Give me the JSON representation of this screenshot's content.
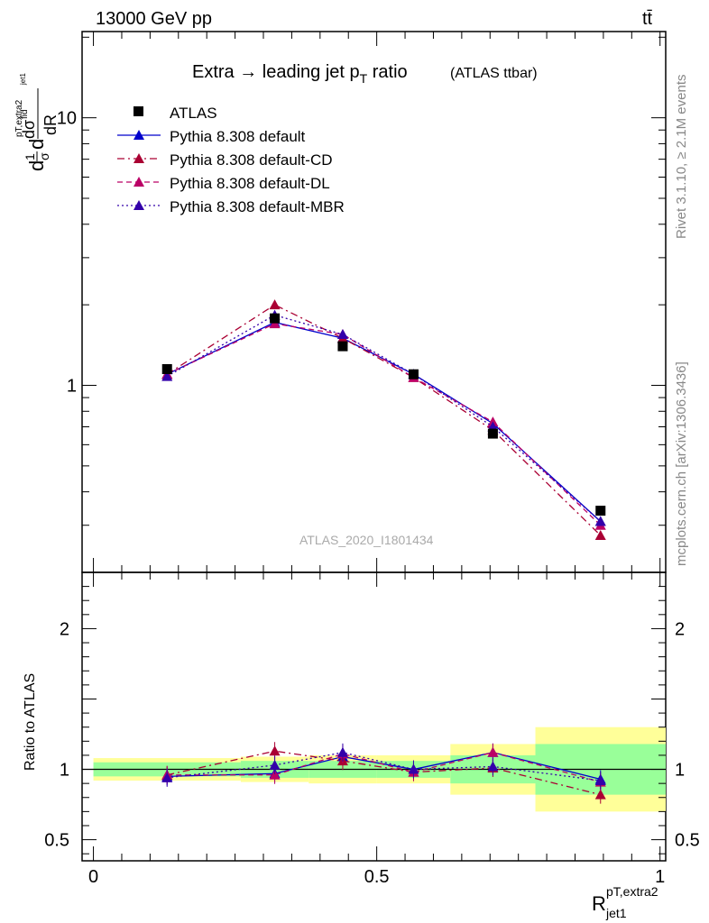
{
  "header": {
    "left": "13000 GeV pp",
    "right": "tt̄"
  },
  "plot_title": "Extra → leading jet p",
  "plot_title_sub": "T",
  "plot_title_tail": " ratio",
  "plot_title_small": "(ATLAS ttbar)",
  "watermark": "ATLAS_2020_I1801434",
  "side_text_top": "Rivet 3.1.10, ≥ 2.1M events",
  "side_text_bottom": "mcplots.cern.ch [arXiv:1306.3436]",
  "ylabel_main": "d σ fid/d R pT,extra2 jet1 (1/σ)",
  "ylabel_ratio": "Ratio to ATLAS",
  "xlabel": "R",
  "xlabel_sup": "pT,extra2",
  "xlabel_sub": "jet1",
  "colors": {
    "atlas": "#000000",
    "default": "#0000cc",
    "cd": "#aa0033",
    "dl": "#bb0066",
    "mbr": "#3300aa",
    "band_inner": "#99ff99",
    "band_outer": "#ffff99"
  },
  "chart_data": {
    "type": "line",
    "x_axis": {
      "range": [
        -0.02,
        1.01
      ],
      "ticks": [
        0,
        0.5,
        1
      ],
      "tick_labels": [
        "0",
        "0.5",
        "1"
      ]
    },
    "main_y_axis": {
      "scale": "log",
      "range": [
        0.2,
        21
      ],
      "tick_labels": [
        "1",
        "10"
      ]
    },
    "ratio_y_axis": {
      "range": [
        0.35,
        2.4
      ],
      "tick_labels": [
        "0.5",
        "1",
        "2"
      ]
    },
    "bins": [
      {
        "lo": 0.0,
        "hi": 0.26
      },
      {
        "lo": 0.26,
        "hi": 0.38
      },
      {
        "lo": 0.38,
        "hi": 0.5
      },
      {
        "lo": 0.5,
        "hi": 0.63
      },
      {
        "lo": 0.63,
        "hi": 0.78
      },
      {
        "lo": 0.78,
        "hi": 1.01
      }
    ],
    "x": [
      0.13,
      0.32,
      0.44,
      0.565,
      0.705,
      0.895
    ],
    "atlas": [
      1.15,
      1.78,
      1.4,
      1.1,
      0.66,
      0.34
    ],
    "band_inner": [
      0.05,
      0.06,
      0.06,
      0.06,
      0.1,
      0.18
    ],
    "band_outer": [
      0.08,
      0.09,
      0.1,
      0.1,
      0.18,
      0.3
    ],
    "series": [
      {
        "name": "Pythia 8.308 default",
        "key": "default",
        "style": "solid",
        "values": [
          1.1,
          1.72,
          1.5,
          1.1,
          0.72,
          0.31
        ],
        "ratio": [
          0.95,
          0.97,
          1.09,
          1.0,
          1.12,
          0.93
        ]
      },
      {
        "name": "Pythia 8.308 default-CD",
        "key": "cd",
        "style": "dashdot",
        "values": [
          1.1,
          2.0,
          1.5,
          1.07,
          0.68,
          0.275
        ],
        "ratio": [
          0.96,
          1.13,
          1.06,
          0.98,
          1.01,
          0.82
        ]
      },
      {
        "name": "Pythia 8.308 default-DL",
        "key": "dl",
        "style": "dashed",
        "values": [
          1.1,
          1.7,
          1.55,
          1.07,
          0.73,
          0.3
        ],
        "ratio": [
          0.96,
          0.96,
          1.11,
          0.98,
          1.12,
          0.91
        ]
      },
      {
        "name": "Pythia 8.308 default-MBR",
        "key": "mbr",
        "style": "dotted",
        "values": [
          1.08,
          1.83,
          1.55,
          1.1,
          0.7,
          0.31
        ],
        "ratio": [
          0.94,
          1.03,
          1.12,
          1.0,
          1.02,
          0.92
        ]
      }
    ],
    "legend": [
      {
        "label": "ATLAS",
        "key": "atlas",
        "marker": "square"
      },
      {
        "label": "Pythia 8.308 default",
        "key": "default",
        "marker": "triangle"
      },
      {
        "label": "Pythia 8.308 default-CD",
        "key": "cd",
        "marker": "triangle"
      },
      {
        "label": "Pythia 8.308 default-DL",
        "key": "dl",
        "marker": "triangle"
      },
      {
        "label": "Pythia 8.308 default-MBR",
        "key": "mbr",
        "marker": "triangle"
      }
    ]
  }
}
